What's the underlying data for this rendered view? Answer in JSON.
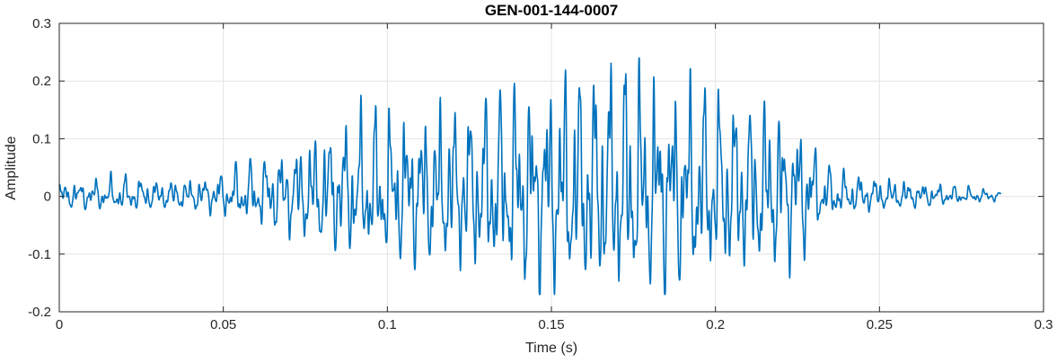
{
  "chart_data": {
    "type": "line",
    "title": "GEN-001-144-0007",
    "xlabel": "Time (s)",
    "ylabel": "Amplitude",
    "xlim": [
      0,
      0.3
    ],
    "ylim": [
      -0.2,
      0.3
    ],
    "xticks": [
      {
        "v": 0,
        "label": "0"
      },
      {
        "v": 0.05,
        "label": "0.05"
      },
      {
        "v": 0.1,
        "label": "0.1"
      },
      {
        "v": 0.15,
        "label": "0.15"
      },
      {
        "v": 0.2,
        "label": "0.2"
      },
      {
        "v": 0.25,
        "label": "0.25"
      },
      {
        "v": 0.3,
        "label": "0.3"
      }
    ],
    "yticks": [
      {
        "v": -0.2,
        "label": "-0.2"
      },
      {
        "v": -0.1,
        "label": "-0.1"
      },
      {
        "v": 0,
        "label": "0"
      },
      {
        "v": 0.1,
        "label": "0.1"
      },
      {
        "v": 0.2,
        "label": "0.2"
      },
      {
        "v": 0.3,
        "label": "0.3"
      }
    ],
    "grid": true,
    "legend": "none",
    "line_color": "#0072BD",
    "axis_color": "#262626",
    "grid_color": "#e4e4e4",
    "series": [
      {
        "name": "waveform",
        "description": "speech-like oscillatory burst; small ripple 0-0.05 s, growing oscillation to max peak ~0.235 near t=0.172 s, negative peaks to ~-0.16, rapid decay after t=0.23 s, low ripple to end at t=0.287 s"
      }
    ],
    "signal": {
      "duration": 0.287,
      "f0_hz": 210,
      "neg_asymmetry": 0.72,
      "peak_amplitude": 0.235,
      "min_amplitude": -0.16,
      "envelope": [
        [
          0.0,
          0.025
        ],
        [
          0.01,
          0.03
        ],
        [
          0.02,
          0.035
        ],
        [
          0.03,
          0.028
        ],
        [
          0.04,
          0.03
        ],
        [
          0.048,
          0.04
        ],
        [
          0.055,
          0.055
        ],
        [
          0.065,
          0.075
        ],
        [
          0.075,
          0.1
        ],
        [
          0.085,
          0.13
        ],
        [
          0.095,
          0.145
        ],
        [
          0.105,
          0.15
        ],
        [
          0.115,
          0.155
        ],
        [
          0.125,
          0.165
        ],
        [
          0.135,
          0.185
        ],
        [
          0.145,
          0.205
        ],
        [
          0.155,
          0.215
        ],
        [
          0.165,
          0.225
        ],
        [
          0.172,
          0.235
        ],
        [
          0.18,
          0.215
        ],
        [
          0.19,
          0.2
        ],
        [
          0.2,
          0.185
        ],
        [
          0.21,
          0.17
        ],
        [
          0.22,
          0.16
        ],
        [
          0.228,
          0.13
        ],
        [
          0.232,
          0.06
        ],
        [
          0.24,
          0.04
        ],
        [
          0.25,
          0.032
        ],
        [
          0.26,
          0.026
        ],
        [
          0.27,
          0.02
        ],
        [
          0.28,
          0.014
        ],
        [
          0.287,
          0.01
        ]
      ]
    }
  }
}
